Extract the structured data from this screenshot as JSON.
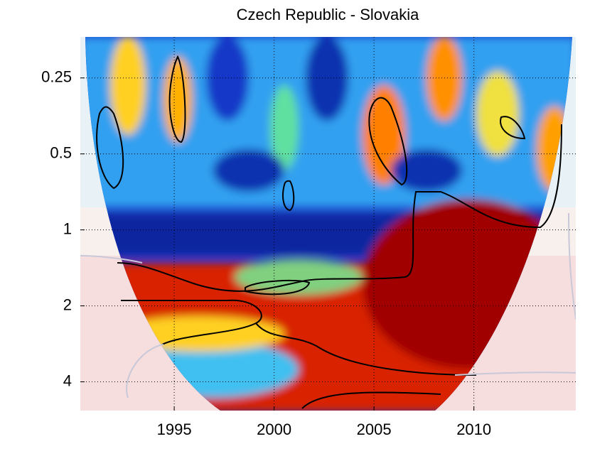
{
  "chart_data": {
    "type": "heatmap",
    "title": "Czech Republic - Slovakia",
    "xlim": [
      1990.3,
      2015.1
    ],
    "xticks": [
      1995,
      2000,
      2005,
      2010
    ],
    "ylim": [
      0.172,
      5.2
    ],
    "yticks": [
      0.25,
      0.5,
      1,
      2,
      4
    ],
    "y_scale": "log",
    "y_reversed": true,
    "grid": true
  }
}
